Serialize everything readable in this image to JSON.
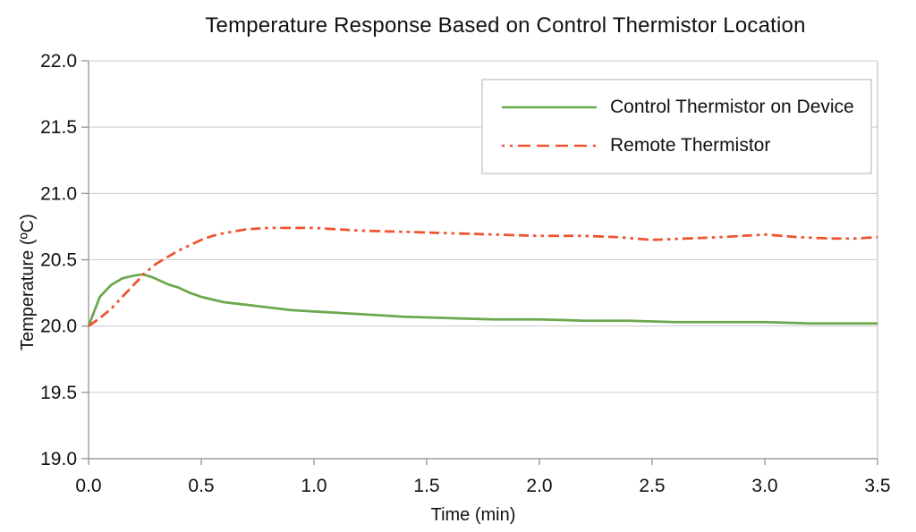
{
  "chart_data": {
    "type": "line",
    "title": "Temperature Response Based on Control Thermistor Location",
    "xlabel": "Time (min)",
    "ylabel": "Temperature (ºC)",
    "xlim": [
      0.0,
      3.5
    ],
    "ylim": [
      19.0,
      22.0
    ],
    "x_tick_labels": [
      "0.0",
      "0.5",
      "1.0",
      "1.5",
      "2.0",
      "2.5",
      "3.0",
      "3.5"
    ],
    "y_tick_labels": [
      "19.0",
      "19.5",
      "20.0",
      "20.5",
      "21.0",
      "21.5",
      "22.0"
    ],
    "grid": "horizontal-only",
    "legend_position": "top-right-inside",
    "colors": {
      "grid": "#c9c9c9",
      "axis": "#9b9b9b",
      "text": "#111111",
      "legend_border": "#d8d8d8",
      "background": "#ffffff"
    },
    "series": [
      {
        "name": "Control Thermistor on Device",
        "color": "#6BA84D",
        "line_style": "solid",
        "points": [
          [
            0.0,
            20.0
          ],
          [
            0.05,
            20.22
          ],
          [
            0.1,
            20.31
          ],
          [
            0.15,
            20.36
          ],
          [
            0.2,
            20.38
          ],
          [
            0.24,
            20.39
          ],
          [
            0.28,
            20.37
          ],
          [
            0.32,
            20.34
          ],
          [
            0.36,
            20.31
          ],
          [
            0.4,
            20.29
          ],
          [
            0.45,
            20.25
          ],
          [
            0.5,
            20.22
          ],
          [
            0.6,
            20.18
          ],
          [
            0.7,
            20.16
          ],
          [
            0.8,
            20.14
          ],
          [
            0.9,
            20.12
          ],
          [
            1.0,
            20.11
          ],
          [
            1.1,
            20.1
          ],
          [
            1.2,
            20.09
          ],
          [
            1.4,
            20.07
          ],
          [
            1.6,
            20.06
          ],
          [
            1.8,
            20.05
          ],
          [
            2.0,
            20.05
          ],
          [
            2.2,
            20.04
          ],
          [
            2.4,
            20.04
          ],
          [
            2.6,
            20.03
          ],
          [
            2.8,
            20.03
          ],
          [
            3.0,
            20.03
          ],
          [
            3.2,
            20.02
          ],
          [
            3.5,
            20.02
          ]
        ]
      },
      {
        "name": "Remote Thermistor",
        "color": "#EF5330",
        "line_style": "long-dash-dot-dot",
        "points": [
          [
            0.0,
            20.0
          ],
          [
            0.05,
            20.06
          ],
          [
            0.1,
            20.13
          ],
          [
            0.15,
            20.22
          ],
          [
            0.2,
            20.31
          ],
          [
            0.25,
            20.4
          ],
          [
            0.3,
            20.47
          ],
          [
            0.35,
            20.52
          ],
          [
            0.4,
            20.57
          ],
          [
            0.45,
            20.61
          ],
          [
            0.5,
            20.65
          ],
          [
            0.55,
            20.68
          ],
          [
            0.6,
            20.7
          ],
          [
            0.7,
            20.73
          ],
          [
            0.8,
            20.74
          ],
          [
            0.9,
            20.74
          ],
          [
            1.0,
            20.74
          ],
          [
            1.1,
            20.73
          ],
          [
            1.2,
            20.72
          ],
          [
            1.4,
            20.71
          ],
          [
            1.6,
            20.7
          ],
          [
            1.8,
            20.69
          ],
          [
            2.0,
            20.68
          ],
          [
            2.2,
            20.68
          ],
          [
            2.35,
            20.67
          ],
          [
            2.5,
            20.65
          ],
          [
            2.65,
            20.66
          ],
          [
            2.8,
            20.67
          ],
          [
            3.0,
            20.69
          ],
          [
            3.15,
            20.67
          ],
          [
            3.3,
            20.66
          ],
          [
            3.4,
            20.66
          ],
          [
            3.5,
            20.67
          ]
        ]
      }
    ]
  }
}
